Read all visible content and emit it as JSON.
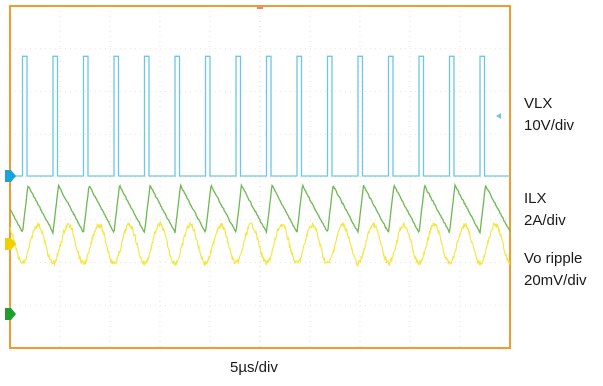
{
  "chart_data": {
    "type": "line",
    "title": "",
    "xlabel": "5µs/div",
    "ylabel": "",
    "grid": true,
    "x_divisions": 10,
    "y_divisions": 8,
    "time_per_div_us": 5,
    "x_unit": "µs",
    "xlim": [
      0,
      50
    ],
    "channels": [
      {
        "name": "VLX",
        "scale": "10V/div",
        "color": "#6ec6e6",
        "marker_color": "#1aa3d9",
        "type": "square-pulse",
        "pulse_count": 16,
        "first_pulse_us": 1.25,
        "period_us": 3.05,
        "pulse_width_us": 0.45,
        "low_div": 0,
        "high_div": 2.8
      },
      {
        "name": "ILX",
        "scale": "2A/div",
        "color": "#6db852",
        "marker_color": "#1e9e2e",
        "type": "sawtooth",
        "period_us": 3.05,
        "valley_div": -0.55,
        "peak_div": 0.55
      },
      {
        "name": "Vo ripple",
        "scale": "20mV/div",
        "color": "#f2e640",
        "marker_color": "#f0d000",
        "type": "ripple",
        "period_us": 3.05,
        "amplitude_div": 0.45
      }
    ]
  },
  "labels": {
    "vlx_name": "VLX",
    "vlx_scale": "10V/div",
    "ilx_name": "ILX",
    "ilx_scale": "2A/div",
    "vo_name": "Vo ripple",
    "vo_scale": "20mV/div",
    "time_scale": "5µs/div"
  }
}
